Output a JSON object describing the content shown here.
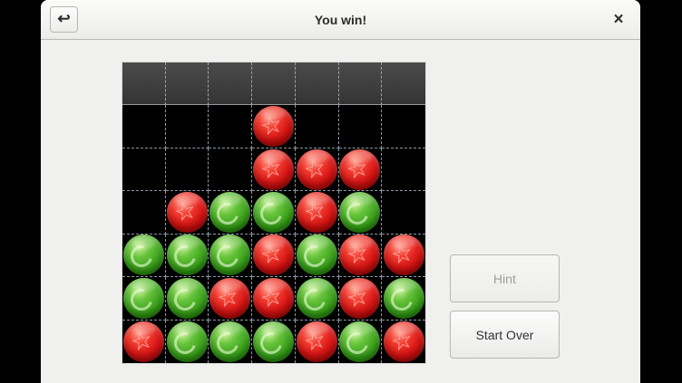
{
  "window": {
    "title": "You win!",
    "back_icon_glyph": "↩",
    "close_icon_glyph": "×"
  },
  "board": {
    "columns": 7,
    "rows": 6,
    "has_drop_row": true,
    "grid": [
      [
        "",
        "",
        "",
        "R",
        "",
        "",
        ""
      ],
      [
        "",
        "",
        "",
        "R",
        "R",
        "R",
        ""
      ],
      [
        "",
        "R",
        "G",
        "G",
        "R",
        "G",
        ""
      ],
      [
        "G",
        "G",
        "G",
        "R",
        "G",
        "R",
        "R"
      ],
      [
        "G",
        "G",
        "R",
        "R",
        "G",
        "R",
        "G"
      ],
      [
        "R",
        "G",
        "G",
        "G",
        "R",
        "G",
        "R"
      ]
    ],
    "pieces": {
      "R": {
        "name": "red-marble",
        "emblem": "star",
        "emblem_glyph": "☆",
        "color": "#d41414"
      },
      "G": {
        "name": "green-marble",
        "emblem": "ring",
        "emblem_glyph": "○",
        "color": "#3ea41d"
      }
    },
    "background_color": "#000000",
    "gridline_color": "#8a97a4"
  },
  "side_panel": {
    "hint_label": "Hint",
    "hint_enabled": false,
    "start_over_label": "Start Over"
  }
}
